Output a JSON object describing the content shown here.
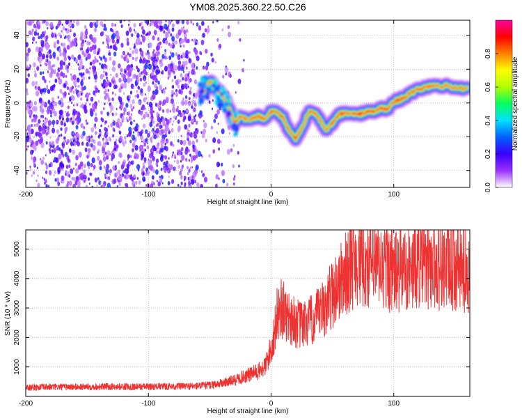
{
  "title": "YM08.2025.360.22.50.C26",
  "chart_data": [
    {
      "type": "heatmap",
      "xlabel": "Height of straight line (km)",
      "ylabel": "Frequency (Hz)",
      "xlim": [
        -200,
        162
      ],
      "ylim": [
        -50,
        49
      ],
      "xticks": [
        -200,
        -100,
        0,
        100
      ],
      "xtick_labels": [
        "-200",
        "-100",
        "0",
        "100"
      ],
      "yticks": [
        40,
        20,
        0,
        -20,
        -40
      ],
      "ytick_labels": [
        "40",
        "20",
        "0",
        "-20",
        "-40"
      ],
      "colorbar": {
        "label": "Normalized spectral amplitude",
        "range": [
          0,
          1
        ],
        "ticks": [
          "0.0",
          "0.2",
          "0.4",
          "0.6",
          "0.8"
        ],
        "colors": [
          "#ffffff",
          "#9b30ff",
          "#3a00ff",
          "#0060ff",
          "#00e0ff",
          "#00ff60",
          "#b0ff00",
          "#ffff00",
          "#ff8000",
          "#ff0000",
          "#ff00a0"
        ]
      },
      "noise_region_x": [
        -200,
        -30
      ],
      "ridge": {
        "x": [
          -55,
          -50,
          -45,
          -40,
          -35,
          -30,
          -25,
          -20,
          -15,
          -10,
          -5,
          0,
          5,
          10,
          15,
          20,
          25,
          30,
          35,
          40,
          45,
          50,
          55,
          60,
          65,
          70,
          75,
          80,
          85,
          90,
          95,
          100,
          105,
          110,
          115,
          120,
          125,
          130,
          135,
          140,
          145,
          150,
          155,
          160
        ],
        "y": [
          5,
          13,
          8,
          5,
          -2,
          -12,
          -8,
          -10,
          -9,
          -8,
          -10,
          -5,
          -6,
          -9,
          -17,
          -21,
          -15,
          -6,
          -5,
          -10,
          -17,
          -12,
          -7,
          -6,
          -6,
          -7,
          -6,
          -5,
          -5,
          -3,
          -4,
          1,
          2,
          4,
          6,
          8,
          9,
          10,
          10,
          10,
          10,
          9,
          9,
          8
        ]
      }
    },
    {
      "type": "line",
      "xlabel": "Height of straight line (km)",
      "ylabel": "SNR (10 * v/v)",
      "xlim": [
        -200,
        162
      ],
      "ylim": [
        0,
        5650
      ],
      "xticks": [
        -200,
        -100,
        0,
        100
      ],
      "xtick_labels": [
        "-200",
        "-100",
        "0",
        "100"
      ],
      "yticks": [
        1000,
        2000,
        3000,
        4000,
        5000
      ],
      "ytick_labels": [
        "1000",
        "2000",
        "3000",
        "4000",
        "5000"
      ],
      "series": [
        {
          "name": "SNR",
          "color": "#ee3333",
          "x": [
            -200,
            -180,
            -160,
            -140,
            -120,
            -100,
            -80,
            -60,
            -50,
            -40,
            -30,
            -20,
            -10,
            -5,
            0,
            3,
            5,
            8,
            10,
            15,
            20,
            25,
            30,
            35,
            40,
            45,
            50,
            55,
            60,
            65,
            70,
            75,
            80,
            85,
            90,
            95,
            100,
            105,
            110,
            115,
            120,
            125,
            130,
            135,
            140,
            145,
            150,
            155,
            160
          ],
          "y": [
            300,
            320,
            320,
            330,
            330,
            330,
            340,
            350,
            380,
            450,
            550,
            700,
            850,
            1000,
            1600,
            2200,
            2800,
            3000,
            2900,
            2700,
            2500,
            2400,
            2500,
            2600,
            2800,
            3100,
            3500,
            3800,
            4100,
            4400,
            4700,
            4500,
            4500,
            4500,
            4300,
            4400,
            4200,
            4200,
            4400,
            4300,
            4600,
            4400,
            4500,
            4400,
            4500,
            4300,
            4400,
            4300,
            4300
          ],
          "noise_amplitude_fraction": 0.35
        }
      ]
    }
  ]
}
